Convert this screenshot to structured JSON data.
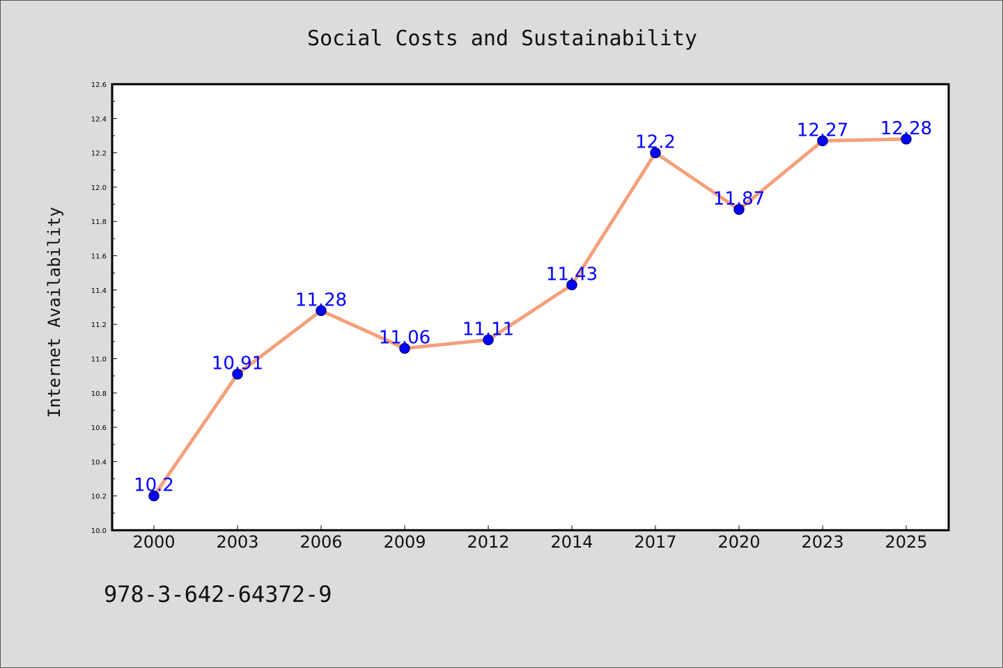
{
  "footnote": "978-3-642-64372-9",
  "colors": {
    "background": "#dcdcdc",
    "plot_background": "#ffffff",
    "line": "#f4a07c",
    "marker": "#0000ff",
    "marker_edge": "#000080",
    "data_label": "#0000ff"
  },
  "chart_data": {
    "type": "line",
    "title": "Social Costs and Sustainability",
    "xlabel": "",
    "ylabel": "Internet Availability",
    "categories": [
      "2000",
      "2003",
      "2006",
      "2009",
      "2012",
      "2014",
      "2017",
      "2020",
      "2023",
      "2025"
    ],
    "series": [
      {
        "values": [
          10.2,
          10.91,
          11.28,
          11.06,
          11.11,
          11.43,
          12.2,
          11.87,
          12.27,
          12.28
        ],
        "data_labels": [
          "10.2",
          "10.91",
          "11.28",
          "11.06",
          "11.11",
          "11.43",
          "12.2",
          "11.87",
          "12.27",
          "12.28"
        ]
      }
    ],
    "ylim": [
      10.0,
      12.6
    ],
    "yticks": [
      "10.0",
      "10.2",
      "10.4",
      "10.6",
      "10.8",
      "11.0",
      "11.2",
      "11.4",
      "11.6",
      "11.8",
      "12.0",
      "12.2",
      "12.4",
      "12.6"
    ],
    "grid": false,
    "legend": "none",
    "markers": "circle"
  }
}
